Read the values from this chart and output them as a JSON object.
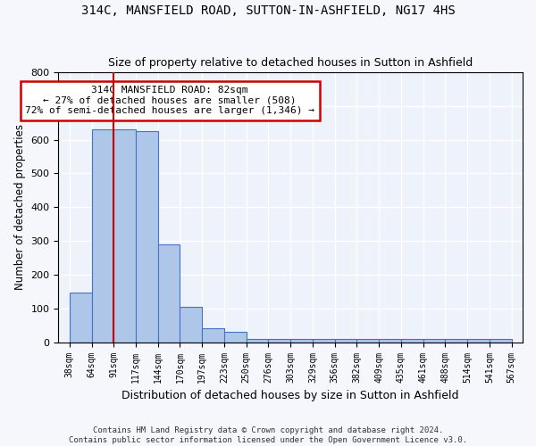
{
  "title1": "314C, MANSFIELD ROAD, SUTTON-IN-ASHFIELD, NG17 4HS",
  "title2": "Size of property relative to detached houses in Sutton in Ashfield",
  "xlabel": "Distribution of detached houses by size in Sutton in Ashfield",
  "ylabel": "Number of detached properties",
  "bar_values": [
    148,
    630,
    630,
    625,
    290,
    105,
    42,
    30,
    10,
    10,
    10,
    10,
    10,
    10,
    10,
    10,
    10,
    10,
    10,
    10
  ],
  "bar_labels": [
    "38sqm",
    "64sqm",
    "91sqm",
    "117sqm",
    "144sqm",
    "170sqm",
    "197sqm",
    "223sqm",
    "250sqm",
    "276sqm",
    "303sqm",
    "329sqm",
    "356sqm",
    "382sqm",
    "409sqm",
    "435sqm",
    "461sqm",
    "488sqm",
    "514sqm",
    "541sqm",
    "567sqm"
  ],
  "bar_color": "#aec6e8",
  "bar_edge_color": "#4472c4",
  "background_color": "#eef2fa",
  "fig_background_color": "#f5f7fd",
  "grid_color": "#ffffff",
  "annotation_text": "314C MANSFIELD ROAD: 82sqm\n← 27% of detached houses are smaller (508)\n72% of semi-detached houses are larger (1,346) →",
  "annotation_box_color": "#ffffff",
  "annotation_box_edge_color": "#cc0000",
  "red_line_x": 2.0,
  "ylim": [
    0,
    800
  ],
  "yticks": [
    0,
    100,
    200,
    300,
    400,
    500,
    600,
    700,
    800
  ],
  "footer1": "Contains HM Land Registry data © Crown copyright and database right 2024.",
  "footer2": "Contains public sector information licensed under the Open Government Licence v3.0."
}
